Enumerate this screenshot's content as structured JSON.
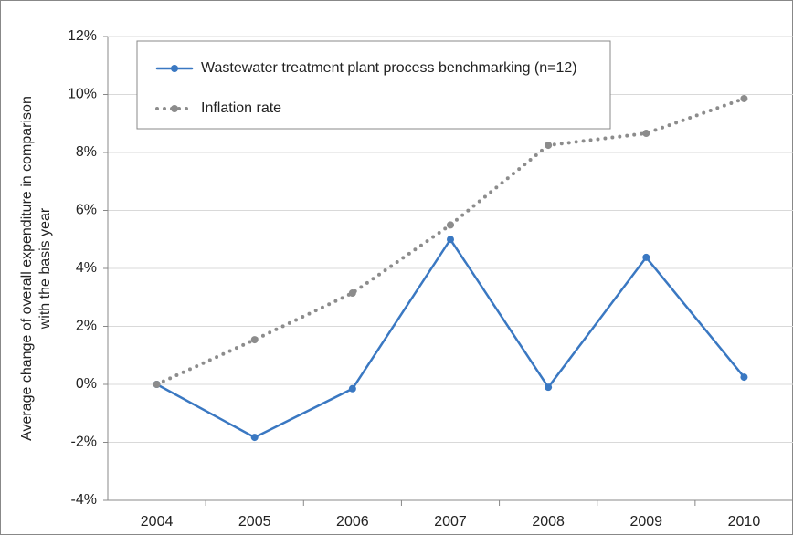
{
  "chart_data": {
    "type": "line",
    "ylabel": [
      "Average change of overall expenditure in comparison",
      "with the basis year"
    ],
    "categories": [
      "2004",
      "2005",
      "2006",
      "2007",
      "2008",
      "2009",
      "2010"
    ],
    "series": [
      {
        "name": "Wastewater treatment plant process benchmarking (n=12)",
        "color": "#3a78c2",
        "dash": "solid",
        "values": [
          0,
          -1.83,
          -0.15,
          5.0,
          -0.1,
          4.38,
          0.25
        ]
      },
      {
        "name": "Inflation rate",
        "color": "#8c8c8c",
        "dash": "dotted",
        "values": [
          0,
          1.54,
          3.15,
          5.5,
          8.25,
          8.66,
          9.86
        ]
      }
    ],
    "ylim": [
      -4,
      12
    ],
    "yticks": [
      {
        "value": -4,
        "label": "-4%"
      },
      {
        "value": -2,
        "label": "-2%"
      },
      {
        "value": 0,
        "label": "0%"
      },
      {
        "value": 2,
        "label": "2%"
      },
      {
        "value": 4,
        "label": "4%"
      },
      {
        "value": 6,
        "label": "6%"
      },
      {
        "value": 8,
        "label": "8%"
      },
      {
        "value": 10,
        "label": "10%"
      },
      {
        "value": 12,
        "label": "12%"
      }
    ],
    "grid": true,
    "legend": "upper left"
  }
}
